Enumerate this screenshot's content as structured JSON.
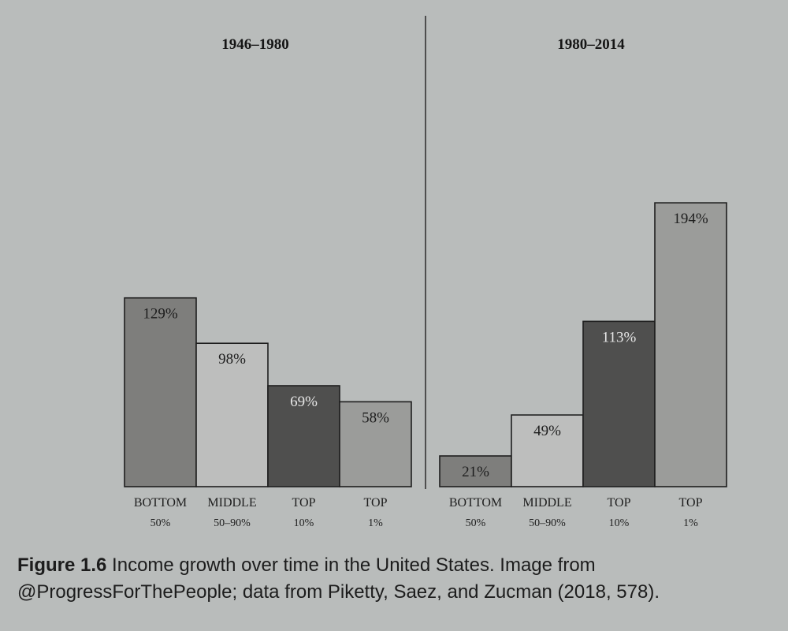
{
  "chart_data": [
    {
      "type": "bar",
      "title": "1946–1980",
      "categories": [
        {
          "line1": "BOTTOM",
          "line2": "50%"
        },
        {
          "line1": "MIDDLE",
          "line2": "50–90%"
        },
        {
          "line1": "TOP",
          "line2": "10%"
        },
        {
          "line1": "TOP",
          "line2": "1%"
        }
      ],
      "values": [
        129,
        98,
        69,
        58
      ],
      "value_labels": [
        "129%",
        "98%",
        "69%",
        "58%"
      ],
      "ylim": [
        0,
        200
      ],
      "colors": [
        "#7e7e7c",
        "#bdbebd",
        "#4f4f4e",
        "#9b9c9a"
      ]
    },
    {
      "type": "bar",
      "title": "1980–2014",
      "categories": [
        {
          "line1": "BOTTOM",
          "line2": "50%"
        },
        {
          "line1": "MIDDLE",
          "line2": "50–90%"
        },
        {
          "line1": "TOP",
          "line2": "10%"
        },
        {
          "line1": "TOP",
          "line2": "1%"
        }
      ],
      "values": [
        21,
        49,
        113,
        194
      ],
      "value_labels": [
        "21%",
        "49%",
        "113%",
        "194%"
      ],
      "ylim": [
        0,
        200
      ],
      "colors": [
        "#7e7e7c",
        "#bdbebd",
        "#4f4f4e",
        "#9b9c9a"
      ]
    }
  ],
  "caption": {
    "figure_number": "Figure 1.6",
    "text_line1": "Income growth over time in the United States. Image from",
    "text_line2": "@ProgressForThePeople; data from Piketty, Saez, and Zucman (2018, 578)."
  }
}
